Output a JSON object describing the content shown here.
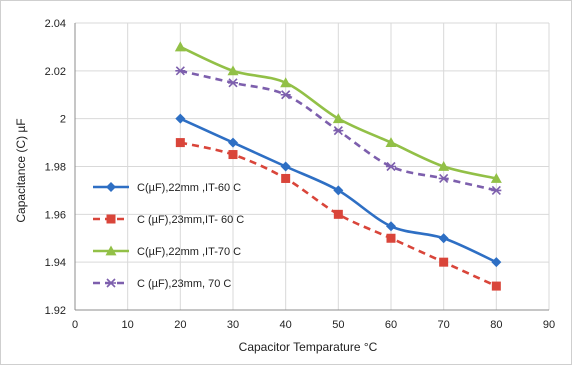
{
  "chart_data": {
    "type": "line",
    "xlabel": "Capacitor Temparature  °C",
    "ylabel": "Capacitance (C)  µF",
    "xlim": [
      0,
      90
    ],
    "ylim": [
      1.92,
      2.04
    ],
    "x_ticks": [
      "0",
      "10",
      "20",
      "30",
      "40",
      "50",
      "60",
      "70",
      "80",
      "90"
    ],
    "y_ticks": [
      "1.92",
      "1.94",
      "1.96",
      "1.98",
      "2",
      "2.02",
      "2.04"
    ],
    "grid": "both",
    "legend_position": "left-middle",
    "x": [
      20,
      30,
      40,
      50,
      60,
      70,
      80
    ],
    "series": [
      {
        "name": "C(µF),22mm ,IT-60 C",
        "values": [
          2.0,
          1.99,
          1.98,
          1.97,
          1.955,
          1.95,
          1.94
        ],
        "color": "#2e6fc4",
        "marker": "diamond",
        "dash": "solid"
      },
      {
        "name": "C (µF),23mm,IT- 60 C",
        "values": [
          1.99,
          1.985,
          1.975,
          1.96,
          1.95,
          1.94,
          1.93
        ],
        "color": "#d9453a",
        "marker": "square",
        "dash": "dashed"
      },
      {
        "name": "C(µF),22mm ,IT-70 C",
        "values": [
          2.03,
          2.02,
          2.015,
          2.0,
          1.99,
          1.98,
          1.975
        ],
        "color": "#92c047",
        "marker": "triangle",
        "dash": "solid"
      },
      {
        "name": "C (µF),23mm, 70 C",
        "values": [
          2.02,
          2.015,
          2.01,
          1.995,
          1.98,
          1.975,
          1.97
        ],
        "color": "#7d5fad",
        "marker": "x",
        "dash": "dashed"
      }
    ]
  }
}
